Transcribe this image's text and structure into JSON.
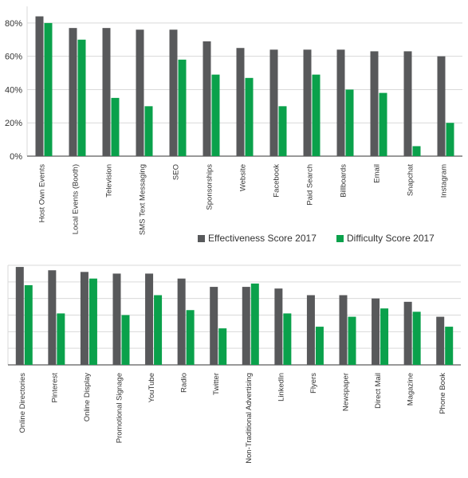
{
  "colors": {
    "effectiveness": "#58595b",
    "difficulty": "#0aa14b",
    "grid": "#d9d9d9",
    "axis": "#333333"
  },
  "legend": {
    "effectiveness_label": "Effectiveness Score 2017",
    "difficulty_label": "Difficulty Score 2017"
  },
  "chart_data": [
    {
      "type": "bar",
      "categories": [
        "Host Own Events",
        "Local Events (Booth)",
        "Television",
        "SMS Text Messaging",
        "SEO",
        "Sponsorships",
        "Website",
        "Facebook",
        "Paid Search",
        "Billboards",
        "Email",
        "Snapchat",
        "Instagram"
      ],
      "series": [
        {
          "name": "Effectiveness Score 2017",
          "values": [
            84,
            77,
            77,
            76,
            76,
            69,
            65,
            64,
            64,
            64,
            63,
            63,
            60
          ]
        },
        {
          "name": "Difficulty Score 2017",
          "values": [
            80,
            70,
            35,
            30,
            58,
            49,
            47,
            30,
            49,
            40,
            38,
            6,
            20
          ]
        }
      ],
      "ylim": [
        0,
        90
      ],
      "yticks": [
        0,
        20,
        40,
        60,
        80
      ],
      "ytick_labels": [
        "0%",
        "20%",
        "40%",
        "60%",
        "80%"
      ],
      "grid": true,
      "legend_position": "bottom-right"
    },
    {
      "type": "bar",
      "categories": [
        "Online Directories",
        "Pinterest",
        "Online Display",
        "Promotional Signage",
        "YouTube",
        "Radio",
        "Twitter",
        "Non-Traditional Advertising",
        "LinkedIn",
        "Flyers",
        "Newspaper",
        "Direct Mail",
        "Magazine",
        "Phone Book"
      ],
      "series": [
        {
          "name": "Effectiveness Score 2017",
          "values": [
            59,
            57,
            56,
            55,
            55,
            52,
            47,
            47,
            46,
            42,
            42,
            40,
            38,
            29
          ]
        },
        {
          "name": "Difficulty Score 2017",
          "values": [
            48,
            31,
            52,
            30,
            42,
            33,
            22,
            49,
            31,
            23,
            29,
            34,
            32,
            23
          ]
        }
      ],
      "ylim": [
        0,
        60
      ],
      "grid": true
    }
  ]
}
